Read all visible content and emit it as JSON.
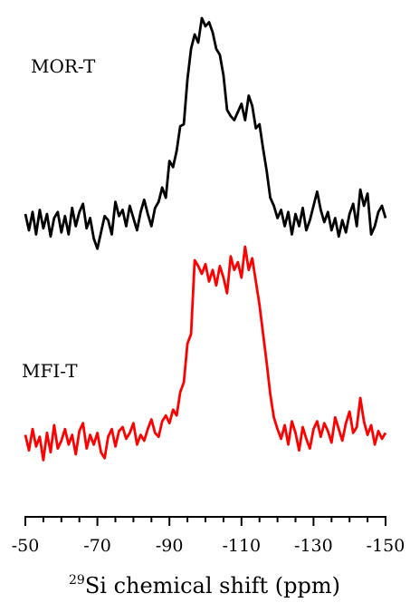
{
  "chart_data": {
    "type": "line",
    "title": "",
    "xlabel": {
      "superscript": "29",
      "text": "Si chemical shift (ppm)"
    },
    "xlim": [
      -50,
      -150
    ],
    "x_reversed": true,
    "xticks": [
      -50,
      -70,
      -90,
      -110,
      -130,
      -150
    ],
    "x_minor_step": 5,
    "y_axis_visible": false,
    "grid": false,
    "series": [
      {
        "name": "MOR-T",
        "color": "#000000",
        "points": [
          [
            -50,
            0.04
          ],
          [
            -51,
            -0.04
          ],
          [
            -52,
            0.05
          ],
          [
            -53,
            -0.06
          ],
          [
            -54,
            0.06
          ],
          [
            -55,
            -0.03
          ],
          [
            -56,
            0.04
          ],
          [
            -57,
            -0.07
          ],
          [
            -58,
            0.02
          ],
          [
            -59,
            0.05
          ],
          [
            -60,
            -0.05
          ],
          [
            -61,
            0.03
          ],
          [
            -62,
            -0.06
          ],
          [
            -63,
            0.07
          ],
          [
            -64,
            -0.02
          ],
          [
            -65,
            0.05
          ],
          [
            -66,
            0.09
          ],
          [
            -67,
            -0.03
          ],
          [
            -68,
            0.02
          ],
          [
            -69,
            -0.08
          ],
          [
            -70,
            -0.13
          ],
          [
            -71,
            -0.05
          ],
          [
            -72,
            0.03
          ],
          [
            -73,
            0.01
          ],
          [
            -74,
            -0.06
          ],
          [
            -75,
            0.1
          ],
          [
            -76,
            0.03
          ],
          [
            -77,
            0.06
          ],
          [
            -78,
            -0.02
          ],
          [
            -79,
            0.08
          ],
          [
            -80,
            0.02
          ],
          [
            -81,
            -0.04
          ],
          [
            -82,
            0.05
          ],
          [
            -83,
            0.11
          ],
          [
            -84,
            0.04
          ],
          [
            -85,
            -0.02
          ],
          [
            -86,
            0.07
          ],
          [
            -87,
            0.1
          ],
          [
            -88,
            0.17
          ],
          [
            -89,
            0.12
          ],
          [
            -90,
            0.3
          ],
          [
            -91,
            0.27
          ],
          [
            -92,
            0.35
          ],
          [
            -93,
            0.47
          ],
          [
            -94,
            0.48
          ],
          [
            -95,
            0.7
          ],
          [
            -96,
            0.85
          ],
          [
            -97,
            0.92
          ],
          [
            -98,
            0.88
          ],
          [
            -99,
            1.0
          ],
          [
            -100,
            0.96
          ],
          [
            -101,
            0.98
          ],
          [
            -102,
            0.93
          ],
          [
            -103,
            0.85
          ],
          [
            -104,
            0.82
          ],
          [
            -105,
            0.72
          ],
          [
            -106,
            0.55
          ],
          [
            -107,
            0.52
          ],
          [
            -108,
            0.5
          ],
          [
            -109,
            0.54
          ],
          [
            -110,
            0.58
          ],
          [
            -111,
            0.5
          ],
          [
            -112,
            0.62
          ],
          [
            -113,
            0.57
          ],
          [
            -114,
            0.46
          ],
          [
            -115,
            0.48
          ],
          [
            -116,
            0.36
          ],
          [
            -117,
            0.25
          ],
          [
            -118,
            0.12
          ],
          [
            -119,
            0.08
          ],
          [
            -120,
            0.02
          ],
          [
            -121,
            0.06
          ],
          [
            -122,
            -0.02
          ],
          [
            -123,
            0.05
          ],
          [
            -124,
            -0.06
          ],
          [
            -125,
            0.04
          ],
          [
            -126,
            -0.02
          ],
          [
            -127,
            0.07
          ],
          [
            -128,
            -0.04
          ],
          [
            -129,
            0.01
          ],
          [
            -130,
            0.08
          ],
          [
            -131,
            0.15
          ],
          [
            -132,
            0.06
          ],
          [
            -133,
            0.0
          ],
          [
            -134,
            0.05
          ],
          [
            -135,
            -0.04
          ],
          [
            -136,
            0.02
          ],
          [
            -137,
            -0.07
          ],
          [
            -138,
            0.01
          ],
          [
            -139,
            -0.05
          ],
          [
            -140,
            0.04
          ],
          [
            -141,
            0.09
          ],
          [
            -142,
            -0.02
          ],
          [
            -143,
            0.16
          ],
          [
            -144,
            0.08
          ],
          [
            -145,
            0.14
          ],
          [
            -146,
            -0.06
          ],
          [
            -147,
            -0.02
          ],
          [
            -148,
            0.05
          ],
          [
            -149,
            0.08
          ],
          [
            -150,
            0.02
          ]
        ]
      },
      {
        "name": "MFI-T",
        "color": "#ff0000",
        "points": [
          [
            -50,
            0.03
          ],
          [
            -51,
            -0.05
          ],
          [
            -52,
            0.06
          ],
          [
            -53,
            -0.03
          ],
          [
            -54,
            0.02
          ],
          [
            -55,
            -0.1
          ],
          [
            -56,
            0.04
          ],
          [
            -57,
            -0.06
          ],
          [
            -58,
            0.08
          ],
          [
            -59,
            -0.04
          ],
          [
            -60,
            0.0
          ],
          [
            -61,
            0.06
          ],
          [
            -62,
            -0.02
          ],
          [
            -63,
            0.03
          ],
          [
            -64,
            -0.07
          ],
          [
            -65,
            0.05
          ],
          [
            -66,
            0.09
          ],
          [
            -67,
            -0.04
          ],
          [
            -68,
            0.03
          ],
          [
            -69,
            -0.02
          ],
          [
            -70,
            0.04
          ],
          [
            -71,
            -0.06
          ],
          [
            -72,
            -0.09
          ],
          [
            -73,
            0.02
          ],
          [
            -74,
            0.06
          ],
          [
            -75,
            -0.03
          ],
          [
            -76,
            0.05
          ],
          [
            -77,
            0.07
          ],
          [
            -78,
            0.01
          ],
          [
            -79,
            0.04
          ],
          [
            -80,
            0.09
          ],
          [
            -81,
            -0.02
          ],
          [
            -82,
            0.03
          ],
          [
            -83,
            0.0
          ],
          [
            -84,
            0.06
          ],
          [
            -85,
            0.11
          ],
          [
            -86,
            0.04
          ],
          [
            -87,
            0.02
          ],
          [
            -88,
            0.1
          ],
          [
            -89,
            0.13
          ],
          [
            -90,
            0.09
          ],
          [
            -91,
            0.16
          ],
          [
            -92,
            0.13
          ],
          [
            -93,
            0.25
          ],
          [
            -94,
            0.3
          ],
          [
            -95,
            0.5
          ],
          [
            -96,
            0.55
          ],
          [
            -97,
            0.93
          ],
          [
            -98,
            0.9
          ],
          [
            -99,
            0.86
          ],
          [
            -100,
            0.91
          ],
          [
            -101,
            0.82
          ],
          [
            -102,
            0.88
          ],
          [
            -103,
            0.8
          ],
          [
            -104,
            0.9
          ],
          [
            -105,
            0.84
          ],
          [
            -106,
            0.76
          ],
          [
            -107,
            0.95
          ],
          [
            -108,
            0.88
          ],
          [
            -109,
            0.92
          ],
          [
            -110,
            0.84
          ],
          [
            -111,
            1.0
          ],
          [
            -112,
            0.88
          ],
          [
            -113,
            0.94
          ],
          [
            -114,
            0.82
          ],
          [
            -115,
            0.7
          ],
          [
            -116,
            0.55
          ],
          [
            -117,
            0.4
          ],
          [
            -118,
            0.24
          ],
          [
            -119,
            0.12
          ],
          [
            -120,
            0.06
          ],
          [
            -121,
            0.01
          ],
          [
            -122,
            0.08
          ],
          [
            -123,
            -0.02
          ],
          [
            -124,
            0.1
          ],
          [
            -125,
            0.04
          ],
          [
            -126,
            -0.05
          ],
          [
            -127,
            0.07
          ],
          [
            -128,
            0.01
          ],
          [
            -129,
            -0.04
          ],
          [
            -130,
            0.06
          ],
          [
            -131,
            0.1
          ],
          [
            -132,
            0.02
          ],
          [
            -133,
            0.09
          ],
          [
            -134,
            0.05
          ],
          [
            -135,
            -0.01
          ],
          [
            -136,
            0.12
          ],
          [
            -137,
            0.06
          ],
          [
            -138,
            0.0
          ],
          [
            -139,
            0.09
          ],
          [
            -140,
            0.15
          ],
          [
            -141,
            0.04
          ],
          [
            -142,
            0.07
          ],
          [
            -143,
            0.22
          ],
          [
            -144,
            0.1
          ],
          [
            -145,
            0.03
          ],
          [
            -146,
            0.08
          ],
          [
            -147,
            -0.02
          ],
          [
            -148,
            0.05
          ],
          [
            -149,
            0.01
          ],
          [
            -150,
            0.04
          ]
        ]
      }
    ]
  }
}
